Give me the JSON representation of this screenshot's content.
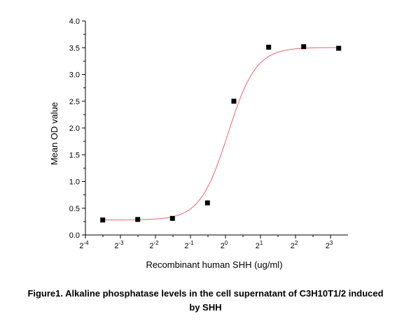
{
  "chart_data": {
    "type": "scatter",
    "title": "",
    "xlabel": "Recombinant human SHH (ug/ml)",
    "ylabel": "Mean OD value",
    "x_scale": "log2",
    "xlim": [
      0.0625,
      11.3
    ],
    "ylim": [
      0,
      4.0
    ],
    "x_ticks": [
      {
        "value": 0.0625,
        "base": "2",
        "exp": "-4"
      },
      {
        "value": 0.125,
        "base": "2",
        "exp": "-3"
      },
      {
        "value": 0.25,
        "base": "2",
        "exp": "-2"
      },
      {
        "value": 0.5,
        "base": "2",
        "exp": "-1"
      },
      {
        "value": 1,
        "base": "2",
        "exp": "0"
      },
      {
        "value": 2,
        "base": "2",
        "exp": "1"
      },
      {
        "value": 4,
        "base": "2",
        "exp": "2"
      },
      {
        "value": 8,
        "base": "2",
        "exp": "3"
      }
    ],
    "y_ticks": [
      "0.0",
      "0.5",
      "1.0",
      "1.5",
      "2.0",
      "2.5",
      "3.0",
      "3.5",
      "4.0"
    ],
    "grid": false,
    "series": [
      {
        "points": [
          {
            "x": 0.088,
            "y": 0.28
          },
          {
            "x": 0.176,
            "y": 0.29
          },
          {
            "x": 0.35,
            "y": 0.31
          },
          {
            "x": 0.7,
            "y": 0.6
          },
          {
            "x": 1.18,
            "y": 2.5
          },
          {
            "x": 2.35,
            "y": 3.51
          },
          {
            "x": 4.7,
            "y": 3.52
          },
          {
            "x": 9.4,
            "y": 3.49
          }
        ],
        "marker": "square",
        "marker_color": "#000000"
      }
    ],
    "fit_curve": {
      "model": "4PL",
      "bottom": 0.28,
      "top": 3.505,
      "ec50": 1.05,
      "hill": 3.6,
      "color": "#e8646e"
    }
  },
  "caption": {
    "line1": "Figure1. Alkaline phosphatase levels in the cell supernatant of C3H10T1/2 induced",
    "line2": "by SHH"
  }
}
